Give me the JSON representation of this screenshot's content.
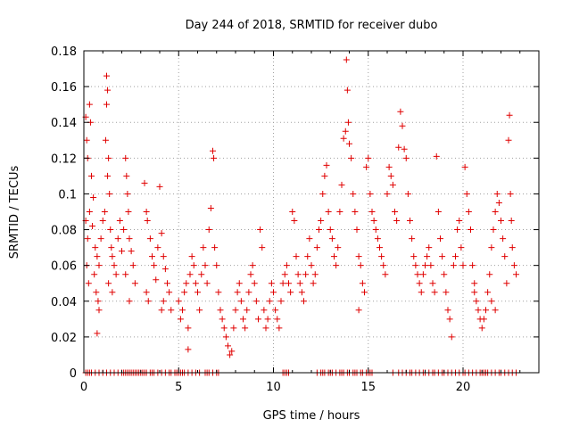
{
  "chart_data": {
    "type": "scatter",
    "title": "Day 244 of 2018, SRMTID for receiver dubo",
    "xlabel": "GPS time / hours",
    "ylabel": "SRMTID / TECUs",
    "xlim": [
      0,
      24
    ],
    "ylim": [
      0,
      0.18
    ],
    "x_ticks": [
      0,
      5,
      10,
      15,
      20
    ],
    "y_ticks": [
      0,
      0.02,
      0.04,
      0.06,
      0.08,
      0.1,
      0.12,
      0.14,
      0.16,
      0.18
    ],
    "x_tick_labels": [
      "0",
      "5",
      "10",
      "15",
      "20"
    ],
    "y_tick_labels": [
      "0",
      "0.02",
      "0.04",
      "0.06",
      "0.08",
      "0.1",
      "0.12",
      "0.14",
      "0.16",
      "0.18"
    ],
    "grid": true,
    "marker": "+",
    "color": "#e00000",
    "series": [
      {
        "name": "SRMTID",
        "points": [
          [
            0.1,
            0.143
          ],
          [
            0.15,
            0.13
          ],
          [
            0.2,
            0.12
          ],
          [
            0.3,
            0.15
          ],
          [
            0.35,
            0.14
          ],
          [
            0.4,
            0.11
          ],
          [
            0.5,
            0.098
          ],
          [
            0.1,
            0.085
          ],
          [
            0.2,
            0.075
          ],
          [
            0.3,
            0.09
          ],
          [
            0.45,
            0.082
          ],
          [
            0.6,
            0.07
          ],
          [
            0.7,
            0.065
          ],
          [
            0.8,
            0.06
          ],
          [
            0.9,
            0.075
          ],
          [
            1.0,
            0.085
          ],
          [
            0.15,
            0.06
          ],
          [
            0.25,
            0.05
          ],
          [
            0.55,
            0.055
          ],
          [
            0.65,
            0.045
          ],
          [
            0.75,
            0.04
          ],
          [
            0.8,
            0.035
          ],
          [
            0.7,
            0.022
          ],
          [
            1.2,
            0.166
          ],
          [
            1.25,
            0.158
          ],
          [
            1.2,
            0.15
          ],
          [
            1.15,
            0.13
          ],
          [
            1.3,
            0.12
          ],
          [
            1.25,
            0.11
          ],
          [
            1.35,
            0.1
          ],
          [
            1.1,
            0.09
          ],
          [
            1.4,
            0.08
          ],
          [
            1.45,
            0.07
          ],
          [
            1.5,
            0.065
          ],
          [
            1.6,
            0.06
          ],
          [
            1.7,
            0.055
          ],
          [
            1.3,
            0.05
          ],
          [
            1.5,
            0.045
          ],
          [
            1.8,
            0.075
          ],
          [
            1.9,
            0.085
          ],
          [
            2.0,
            0.068
          ],
          [
            2.1,
            0.08
          ],
          [
            2.2,
            0.12
          ],
          [
            2.25,
            0.11
          ],
          [
            2.3,
            0.1
          ],
          [
            2.35,
            0.09
          ],
          [
            2.4,
            0.075
          ],
          [
            2.5,
            0.068
          ],
          [
            2.6,
            0.06
          ],
          [
            2.7,
            0.05
          ],
          [
            2.2,
            0.055
          ],
          [
            2.4,
            0.04
          ],
          [
            3.2,
            0.106
          ],
          [
            3.3,
            0.09
          ],
          [
            3.35,
            0.085
          ],
          [
            3.5,
            0.075
          ],
          [
            3.6,
            0.065
          ],
          [
            3.7,
            0.06
          ],
          [
            3.8,
            0.052
          ],
          [
            3.3,
            0.045
          ],
          [
            3.4,
            0.04
          ],
          [
            3.9,
            0.07
          ],
          [
            4.0,
            0.104
          ],
          [
            4.1,
            0.078
          ],
          [
            4.2,
            0.065
          ],
          [
            4.3,
            0.058
          ],
          [
            4.4,
            0.05
          ],
          [
            4.5,
            0.045
          ],
          [
            4.2,
            0.04
          ],
          [
            4.6,
            0.035
          ],
          [
            4.1,
            0.035
          ],
          [
            5.0,
            0.04
          ],
          [
            5.1,
            0.03
          ],
          [
            5.2,
            0.035
          ],
          [
            5.3,
            0.045
          ],
          [
            5.4,
            0.05
          ],
          [
            5.5,
            0.025
          ],
          [
            5.6,
            0.055
          ],
          [
            5.7,
            0.065
          ],
          [
            5.8,
            0.06
          ],
          [
            5.9,
            0.05
          ],
          [
            6.0,
            0.045
          ],
          [
            6.1,
            0.035
          ],
          [
            5.5,
            0.013
          ],
          [
            6.2,
            0.055
          ],
          [
            6.3,
            0.07
          ],
          [
            6.4,
            0.06
          ],
          [
            6.5,
            0.05
          ],
          [
            6.6,
            0.08
          ],
          [
            6.7,
            0.092
          ],
          [
            6.8,
            0.124
          ],
          [
            6.85,
            0.12
          ],
          [
            6.9,
            0.07
          ],
          [
            7.0,
            0.06
          ],
          [
            7.1,
            0.045
          ],
          [
            7.2,
            0.035
          ],
          [
            7.3,
            0.03
          ],
          [
            7.4,
            0.025
          ],
          [
            7.5,
            0.02
          ],
          [
            7.6,
            0.015
          ],
          [
            7.7,
            0.01
          ],
          [
            7.8,
            0.012
          ],
          [
            7.9,
            0.025
          ],
          [
            8.0,
            0.035
          ],
          [
            8.1,
            0.045
          ],
          [
            8.2,
            0.05
          ],
          [
            8.3,
            0.04
          ],
          [
            8.4,
            0.03
          ],
          [
            8.5,
            0.025
          ],
          [
            8.6,
            0.035
          ],
          [
            8.7,
            0.045
          ],
          [
            8.8,
            0.055
          ],
          [
            8.9,
            0.06
          ],
          [
            9.0,
            0.05
          ],
          [
            9.1,
            0.04
          ],
          [
            9.2,
            0.03
          ],
          [
            9.3,
            0.08
          ],
          [
            9.4,
            0.07
          ],
          [
            9.5,
            0.035
          ],
          [
            9.6,
            0.025
          ],
          [
            9.7,
            0.03
          ],
          [
            9.8,
            0.04
          ],
          [
            9.9,
            0.05
          ],
          [
            10.0,
            0.045
          ],
          [
            10.1,
            0.035
          ],
          [
            10.2,
            0.03
          ],
          [
            10.3,
            0.025
          ],
          [
            10.4,
            0.04
          ],
          [
            10.5,
            0.05
          ],
          [
            10.6,
            0.055
          ],
          [
            10.7,
            0.06
          ],
          [
            10.8,
            0.05
          ],
          [
            10.9,
            0.045
          ],
          [
            11.0,
            0.09
          ],
          [
            11.1,
            0.085
          ],
          [
            11.2,
            0.065
          ],
          [
            11.3,
            0.055
          ],
          [
            11.4,
            0.05
          ],
          [
            11.5,
            0.045
          ],
          [
            11.6,
            0.04
          ],
          [
            11.7,
            0.055
          ],
          [
            11.8,
            0.065
          ],
          [
            11.9,
            0.075
          ],
          [
            12.0,
            0.06
          ],
          [
            12.1,
            0.05
          ],
          [
            12.2,
            0.055
          ],
          [
            12.3,
            0.07
          ],
          [
            12.4,
            0.08
          ],
          [
            12.5,
            0.085
          ],
          [
            12.6,
            0.1
          ],
          [
            12.7,
            0.11
          ],
          [
            12.8,
            0.116
          ],
          [
            12.9,
            0.09
          ],
          [
            13.0,
            0.08
          ],
          [
            13.1,
            0.075
          ],
          [
            13.2,
            0.065
          ],
          [
            13.3,
            0.06
          ],
          [
            13.4,
            0.07
          ],
          [
            13.5,
            0.09
          ],
          [
            13.6,
            0.105
          ],
          [
            13.7,
            0.131
          ],
          [
            13.8,
            0.135
          ],
          [
            13.85,
            0.175
          ],
          [
            13.9,
            0.158
          ],
          [
            13.95,
            0.14
          ],
          [
            14.0,
            0.128
          ],
          [
            14.1,
            0.12
          ],
          [
            14.2,
            0.1
          ],
          [
            14.3,
            0.09
          ],
          [
            14.4,
            0.08
          ],
          [
            14.5,
            0.065
          ],
          [
            14.6,
            0.06
          ],
          [
            14.7,
            0.05
          ],
          [
            14.8,
            0.045
          ],
          [
            14.5,
            0.035
          ],
          [
            14.9,
            0.115
          ],
          [
            15.0,
            0.12
          ],
          [
            15.1,
            0.1
          ],
          [
            15.2,
            0.09
          ],
          [
            15.3,
            0.085
          ],
          [
            15.4,
            0.08
          ],
          [
            15.5,
            0.075
          ],
          [
            15.6,
            0.07
          ],
          [
            15.7,
            0.065
          ],
          [
            15.8,
            0.06
          ],
          [
            15.9,
            0.055
          ],
          [
            16.0,
            0.1
          ],
          [
            16.1,
            0.115
          ],
          [
            16.2,
            0.11
          ],
          [
            16.3,
            0.105
          ],
          [
            16.4,
            0.09
          ],
          [
            16.5,
            0.085
          ],
          [
            16.6,
            0.126
          ],
          [
            16.7,
            0.146
          ],
          [
            16.8,
            0.138
          ],
          [
            16.9,
            0.125
          ],
          [
            17.0,
            0.12
          ],
          [
            17.1,
            0.1
          ],
          [
            17.2,
            0.085
          ],
          [
            17.3,
            0.075
          ],
          [
            17.4,
            0.065
          ],
          [
            17.5,
            0.06
          ],
          [
            17.6,
            0.055
          ],
          [
            17.7,
            0.05
          ],
          [
            17.8,
            0.045
          ],
          [
            17.9,
            0.055
          ],
          [
            18.0,
            0.06
          ],
          [
            18.1,
            0.065
          ],
          [
            18.2,
            0.07
          ],
          [
            18.3,
            0.06
          ],
          [
            18.4,
            0.05
          ],
          [
            18.5,
            0.045
          ],
          [
            18.6,
            0.121
          ],
          [
            18.7,
            0.09
          ],
          [
            18.8,
            0.075
          ],
          [
            18.9,
            0.065
          ],
          [
            19.0,
            0.055
          ],
          [
            19.1,
            0.045
          ],
          [
            19.2,
            0.035
          ],
          [
            19.3,
            0.03
          ],
          [
            19.4,
            0.02
          ],
          [
            19.5,
            0.06
          ],
          [
            19.6,
            0.065
          ],
          [
            19.7,
            0.08
          ],
          [
            19.8,
            0.085
          ],
          [
            19.9,
            0.07
          ],
          [
            20.0,
            0.06
          ],
          [
            20.1,
            0.115
          ],
          [
            20.2,
            0.1
          ],
          [
            20.3,
            0.09
          ],
          [
            20.4,
            0.08
          ],
          [
            20.5,
            0.06
          ],
          [
            20.6,
            0.05
          ],
          [
            20.7,
            0.04
          ],
          [
            20.8,
            0.035
          ],
          [
            20.9,
            0.03
          ],
          [
            21.0,
            0.025
          ],
          [
            21.1,
            0.03
          ],
          [
            21.2,
            0.035
          ],
          [
            21.3,
            0.045
          ],
          [
            21.4,
            0.055
          ],
          [
            21.5,
            0.07
          ],
          [
            21.6,
            0.08
          ],
          [
            21.7,
            0.09
          ],
          [
            21.8,
            0.1
          ],
          [
            21.9,
            0.095
          ],
          [
            22.0,
            0.085
          ],
          [
            22.1,
            0.075
          ],
          [
            22.2,
            0.065
          ],
          [
            22.3,
            0.05
          ],
          [
            22.4,
            0.13
          ],
          [
            22.45,
            0.144
          ],
          [
            22.5,
            0.1
          ],
          [
            22.55,
            0.085
          ],
          [
            22.6,
            0.07
          ],
          [
            22.7,
            0.06
          ],
          [
            22.8,
            0.055
          ],
          [
            21.5,
            0.04
          ],
          [
            21.7,
            0.035
          ],
          [
            20.6,
            0.045
          ]
        ],
        "zero_points_x": [
          0.1,
          0.2,
          0.3,
          0.4,
          0.6,
          0.8,
          1.0,
          1.2,
          1.4,
          1.6,
          1.8,
          2.0,
          2.1,
          2.2,
          2.3,
          2.4,
          2.5,
          2.6,
          2.7,
          2.8,
          2.9,
          3.0,
          3.1,
          3.2,
          3.3,
          3.5,
          3.6,
          3.7,
          3.9,
          4.1,
          4.3,
          4.5,
          4.6,
          4.8,
          4.9,
          5.0,
          5.1,
          5.2,
          5.3,
          5.5,
          5.7,
          5.9,
          6.1,
          6.4,
          6.5,
          6.6,
          6.8,
          7.0,
          7.1,
          10.5,
          10.6,
          10.7,
          10.8,
          12.3,
          12.5,
          12.6,
          12.7,
          12.9,
          13.0,
          13.1,
          13.3,
          13.5,
          13.6,
          13.7,
          13.9,
          14.0,
          14.2,
          14.3,
          14.4,
          14.6,
          14.7,
          14.9,
          15.0,
          15.1,
          15.2,
          16.3,
          16.6,
          16.8,
          17.0,
          17.2,
          17.3,
          17.5,
          17.7,
          17.9,
          18.0,
          18.2,
          18.4,
          18.5,
          18.7,
          18.9,
          19.0,
          19.2,
          19.4,
          19.6,
          19.8,
          20.0,
          20.1,
          20.3,
          20.5,
          20.7,
          20.9,
          21.0,
          21.1,
          21.2,
          21.3,
          21.5,
          21.7,
          21.9,
          22.0,
          22.2,
          22.4,
          22.6,
          22.8
        ]
      }
    ]
  }
}
